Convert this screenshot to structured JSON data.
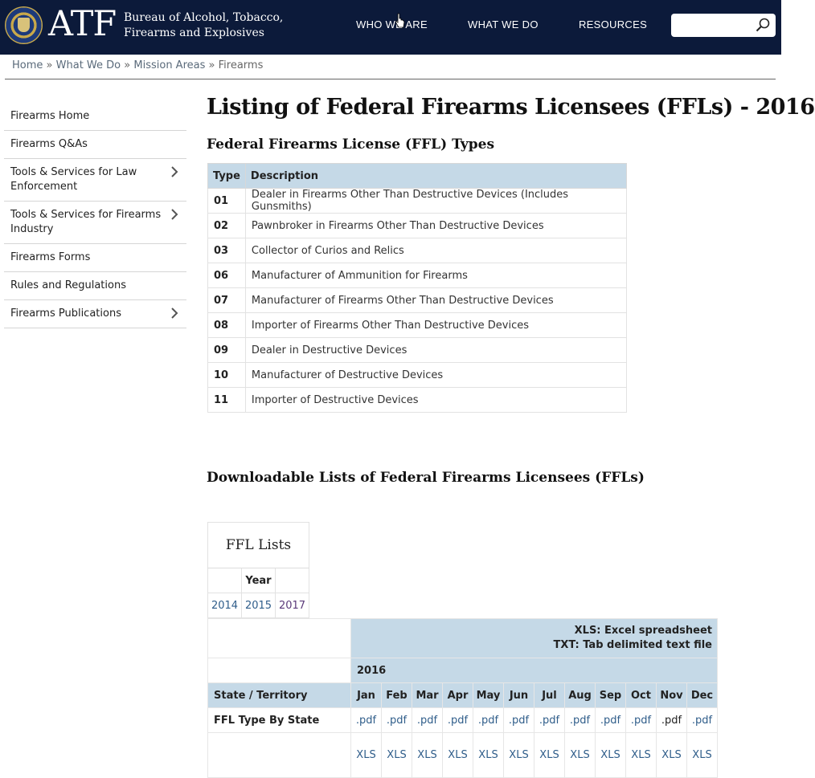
{
  "header": {
    "logo_text": "ATF",
    "agency_name": "Bureau of Alcohol, Tobacco, Firearms and Explosives",
    "nav": [
      "WHO WE ARE",
      "WHAT WE DO",
      "RESOURCES"
    ],
    "search": {
      "placeholder": ""
    }
  },
  "breadcrumb": {
    "items": [
      "Home",
      "What We Do",
      "Mission Areas",
      "Firearms"
    ],
    "separator": "»"
  },
  "sidebar": {
    "items": [
      {
        "label": "Firearms Home",
        "has_children": false
      },
      {
        "label": "Firearms Q&As",
        "has_children": false
      },
      {
        "label": "Tools & Services for Law Enforcement",
        "has_children": true
      },
      {
        "label": "Tools & Services for Firearms Industry",
        "has_children": true
      },
      {
        "label": "Firearms Forms",
        "has_children": false
      },
      {
        "label": "Rules and Regulations",
        "has_children": false
      },
      {
        "label": "Firearms Publications",
        "has_children": true
      }
    ]
  },
  "main": {
    "title": "Listing of Federal Firearms Licensees (FFLs) - 2016",
    "types_heading": "Federal Firearms License (FFL) Types",
    "types_table": {
      "headers": [
        "Type",
        "Description"
      ],
      "rows": [
        [
          "01",
          "Dealer in Firearms Other Than Destructive Devices (Includes Gunsmiths)"
        ],
        [
          "02",
          "Pawnbroker in Firearms Other Than Destructive Devices"
        ],
        [
          "03",
          "Collector of Curios and Relics"
        ],
        [
          "06",
          "Manufacturer of Ammunition for Firearms"
        ],
        [
          "07",
          "Manufacturer of Firearms Other Than Destructive Devices"
        ],
        [
          "08",
          "Importer of Firearms Other Than Destructive Devices"
        ],
        [
          "09",
          "Dealer in Destructive Devices"
        ],
        [
          "10",
          "Manufacturer of Destructive Devices"
        ],
        [
          "11",
          "Importer of Destructive Devices"
        ]
      ]
    },
    "downloads_heading": "Downloadable Lists of Federal Firearms Licensees (FFLs)",
    "ffl_lists": {
      "caption": "FFL Lists",
      "year_header": "Year",
      "years": [
        "2014",
        "2015",
        "2017"
      ]
    },
    "monthly": {
      "legend_line1": "XLS: Excel spreadsheet",
      "legend_line2": "TXT: Tab delimited text file",
      "year": "2016",
      "row_header": "State / Territory",
      "months": [
        "Jan",
        "Feb",
        "Mar",
        "Apr",
        "May",
        "Jun",
        "Jul",
        "Aug",
        "Sep",
        "Oct",
        "Nov",
        "Dec"
      ],
      "row1_label": "FFL Type By State",
      "row1_link": ".pdf",
      "row2_link": "XLS"
    }
  }
}
